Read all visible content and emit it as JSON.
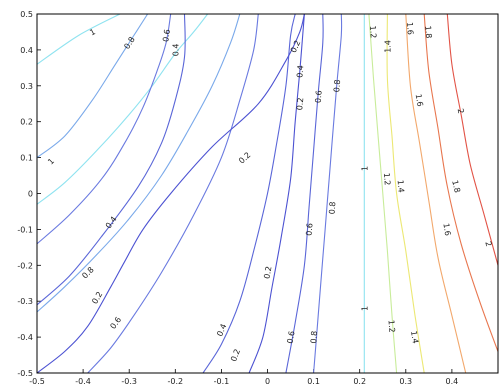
{
  "chart_data": {
    "type": "contour",
    "title": "",
    "xlabel": "",
    "ylabel": "",
    "xlim": [
      -0.5,
      0.5
    ],
    "ylim": [
      -0.5,
      0.5
    ],
    "x_ticks": [
      "-0.5",
      "-0.4",
      "-0.3",
      "-0.2",
      "-0.1",
      "0",
      "0.1",
      "0.2",
      "0.3",
      "0.4"
    ],
    "y_ticks": [
      "0.5",
      "0.4",
      "0.3",
      "0.2",
      "0.1",
      "0",
      "-0.1",
      "-0.2",
      "-0.3",
      "-0.4",
      "-0.5"
    ],
    "grid": false,
    "contours": [
      {
        "level": "1",
        "color": "#8fe3f0",
        "paths": [
          {
            "points": [
              [
                -0.5,
                0.36
              ],
              [
                -0.41,
                0.44
              ],
              [
                -0.32,
                0.5
              ]
            ],
            "labels": [
              [
                -0.38,
                0.45
              ]
            ]
          },
          {
            "points": [
              [
                -0.5,
                -0.03
              ],
              [
                -0.44,
                0.03
              ],
              [
                -0.37,
                0.12
              ],
              [
                -0.3,
                0.22
              ],
              [
                -0.25,
                0.3
              ],
              [
                -0.2,
                0.39
              ],
              [
                -0.16,
                0.45
              ],
              [
                -0.13,
                0.5
              ]
            ],
            "labels": [
              [
                -0.47,
                0.09
              ]
            ]
          }
        ]
      },
      {
        "level": "0.8",
        "color": "#7aa9ea",
        "paths": [
          {
            "points": [
              [
                -0.5,
                0.1
              ],
              [
                -0.44,
                0.16
              ],
              [
                -0.38,
                0.26
              ],
              [
                -0.33,
                0.36
              ],
              [
                -0.29,
                0.44
              ],
              [
                -0.26,
                0.5
              ]
            ],
            "labels": [
              [
                -0.3,
                0.42
              ]
            ]
          },
          {
            "points": [
              [
                -0.5,
                -0.33
              ],
              [
                -0.44,
                -0.26
              ],
              [
                -0.37,
                -0.17
              ],
              [
                -0.3,
                -0.07
              ],
              [
                -0.23,
                0.05
              ],
              [
                -0.17,
                0.18
              ],
              [
                -0.12,
                0.3
              ],
              [
                -0.08,
                0.42
              ],
              [
                -0.06,
                0.5
              ]
            ],
            "labels": [
              [
                -0.39,
                -0.22
              ]
            ]
          }
        ]
      },
      {
        "level": "0.6",
        "color": "#6a7ae0",
        "paths": [
          {
            "points": [
              [
                -0.5,
                -0.14
              ],
              [
                -0.43,
                -0.06
              ],
              [
                -0.36,
                0.04
              ],
              [
                -0.31,
                0.14
              ],
              [
                -0.27,
                0.24
              ],
              [
                -0.24,
                0.34
              ],
              [
                -0.22,
                0.42
              ],
              [
                -0.21,
                0.5
              ]
            ],
            "labels": [
              [
                -0.22,
                0.44
              ]
            ]
          },
          {
            "points": [
              [
                -0.39,
                -0.5
              ],
              [
                -0.34,
                -0.43
              ],
              [
                -0.29,
                -0.34
              ],
              [
                -0.23,
                -0.22
              ],
              [
                -0.16,
                -0.06
              ],
              [
                -0.1,
                0.1
              ],
              [
                -0.06,
                0.26
              ],
              [
                -0.03,
                0.4
              ],
              [
                -0.02,
                0.5
              ]
            ],
            "labels": [
              [
                -0.33,
                -0.36
              ]
            ]
          }
        ]
      },
      {
        "level": "0.4",
        "color": "#5a66d8",
        "paths": [
          {
            "points": [
              [
                -0.5,
                -0.31
              ],
              [
                -0.43,
                -0.23
              ],
              [
                -0.36,
                -0.12
              ],
              [
                -0.28,
                0.02
              ],
              [
                -0.23,
                0.14
              ],
              [
                -0.2,
                0.26
              ],
              [
                -0.18,
                0.38
              ],
              [
                -0.18,
                0.5
              ]
            ],
            "labels": [
              [
                -0.34,
                -0.08
              ],
              [
                -0.2,
                0.4
              ]
            ]
          },
          {
            "points": [
              [
                -0.14,
                -0.5
              ],
              [
                -0.1,
                -0.42
              ],
              [
                -0.06,
                -0.3
              ],
              [
                -0.03,
                -0.16
              ],
              [
                0.0,
                0.0
              ],
              [
                0.02,
                0.14
              ],
              [
                0.04,
                0.3
              ],
              [
                0.05,
                0.44
              ],
              [
                0.06,
                0.5
              ]
            ],
            "labels": [
              [
                -0.1,
                -0.38
              ],
              [
                0.07,
                0.34
              ]
            ]
          }
        ]
      },
      {
        "level": "0.2",
        "color": "#4c52d2",
        "paths": [
          {
            "points": [
              [
                -0.5,
                -0.5
              ],
              [
                -0.44,
                -0.44
              ],
              [
                -0.39,
                -0.37
              ],
              [
                -0.34,
                -0.26
              ],
              [
                -0.31,
                -0.19
              ],
              [
                -0.27,
                -0.1
              ],
              [
                -0.21,
                0.0
              ],
              [
                -0.12,
                0.13
              ],
              [
                -0.02,
                0.25
              ],
              [
                0.04,
                0.37
              ],
              [
                0.07,
                0.45
              ],
              [
                0.08,
                0.5
              ]
            ],
            "labels": [
              [
                -0.37,
                -0.29
              ],
              [
                -0.05,
                0.1
              ],
              [
                0.06,
                0.41
              ]
            ]
          },
          {
            "points": [
              [
                -0.04,
                -0.5
              ],
              [
                -0.01,
                -0.4
              ],
              [
                0.01,
                -0.26
              ],
              [
                0.03,
                -0.12
              ],
              [
                0.05,
                0.04
              ],
              [
                0.06,
                0.2
              ],
              [
                0.07,
                0.34
              ],
              [
                0.08,
                0.5
              ]
            ],
            "labels": [
              [
                -0.07,
                -0.45
              ],
              [
                0.0,
                -0.22
              ],
              [
                0.07,
                0.25
              ]
            ]
          }
        ]
      },
      {
        "level": "0.6",
        "color": "#5a66d8",
        "paths": [
          {
            "points": [
              [
                0.04,
                -0.5
              ],
              [
                0.06,
                -0.36
              ],
              [
                0.08,
                -0.2
              ],
              [
                0.09,
                -0.04
              ],
              [
                0.1,
                0.12
              ],
              [
                0.11,
                0.28
              ],
              [
                0.12,
                0.42
              ],
              [
                0.12,
                0.5
              ]
            ],
            "labels": [
              [
                0.05,
                -0.4
              ],
              [
                0.09,
                -0.1
              ],
              [
                0.11,
                0.27
              ]
            ]
          }
        ]
      },
      {
        "level": "0.8",
        "color": "#6a7ae0",
        "paths": [
          {
            "points": [
              [
                0.1,
                -0.5
              ],
              [
                0.11,
                -0.34
              ],
              [
                0.12,
                -0.18
              ],
              [
                0.13,
                -0.02
              ],
              [
                0.14,
                0.14
              ],
              [
                0.15,
                0.3
              ],
              [
                0.16,
                0.44
              ],
              [
                0.16,
                0.5
              ]
            ],
            "labels": [
              [
                0.1,
                -0.4
              ],
              [
                0.14,
                -0.04
              ],
              [
                0.15,
                0.3
              ]
            ]
          }
        ]
      },
      {
        "level": "1",
        "color": "#8fe3f0",
        "paths": [
          {
            "points": [
              [
                0.21,
                -0.5
              ],
              [
                0.21,
                -0.3
              ],
              [
                0.21,
                -0.1
              ],
              [
                0.21,
                0.1
              ],
              [
                0.21,
                0.3
              ],
              [
                0.21,
                0.5
              ]
            ],
            "labels": [
              [
                0.21,
                0.07
              ],
              [
                0.21,
                -0.32
              ]
            ]
          }
        ]
      },
      {
        "level": "1.2",
        "color": "#c8ec9a",
        "paths": [
          {
            "points": [
              [
                0.28,
                -0.5
              ],
              [
                0.27,
                -0.34
              ],
              [
                0.26,
                -0.16
              ],
              [
                0.25,
                0.0
              ],
              [
                0.24,
                0.16
              ],
              [
                0.23,
                0.32
              ],
              [
                0.22,
                0.5
              ]
            ],
            "labels": [
              [
                0.26,
                0.04
              ],
              [
                0.27,
                -0.37
              ],
              [
                0.23,
                0.45
              ]
            ]
          }
        ]
      },
      {
        "level": "1.4",
        "color": "#ece874",
        "paths": [
          {
            "points": [
              [
                0.34,
                -0.5
              ],
              [
                0.32,
                -0.34
              ],
              [
                0.3,
                -0.16
              ],
              [
                0.28,
                0.0
              ],
              [
                0.27,
                0.16
              ],
              [
                0.26,
                0.32
              ],
              [
                0.26,
                0.5
              ]
            ],
            "labels": [
              [
                0.29,
                0.02
              ],
              [
                0.32,
                -0.4
              ],
              [
                0.26,
                0.41
              ]
            ]
          }
        ]
      },
      {
        "level": "1.6",
        "color": "#f2a86c",
        "paths": [
          {
            "points": [
              [
                0.43,
                -0.5
              ],
              [
                0.4,
                -0.34
              ],
              [
                0.37,
                -0.18
              ],
              [
                0.35,
                -0.02
              ],
              [
                0.33,
                0.14
              ],
              [
                0.31,
                0.3
              ],
              [
                0.3,
                0.5
              ]
            ],
            "labels": [
              [
                0.39,
                -0.1
              ],
              [
                0.33,
                0.26
              ],
              [
                0.31,
                0.46
              ]
            ]
          }
        ]
      },
      {
        "level": "1.8",
        "color": "#e8764e",
        "paths": [
          {
            "points": [
              [
                0.5,
                -0.44
              ],
              [
                0.46,
                -0.3
              ],
              [
                0.42,
                -0.14
              ],
              [
                0.39,
                0.02
              ],
              [
                0.37,
                0.18
              ],
              [
                0.35,
                0.34
              ],
              [
                0.34,
                0.5
              ]
            ],
            "labels": [
              [
                0.41,
                0.02
              ],
              [
                0.35,
                0.45
              ]
            ]
          }
        ]
      },
      {
        "level": "2",
        "color": "#e25346",
        "paths": [
          {
            "points": [
              [
                0.5,
                -0.2
              ],
              [
                0.47,
                -0.06
              ],
              [
                0.44,
                0.08
              ],
              [
                0.42,
                0.22
              ],
              [
                0.4,
                0.36
              ],
              [
                0.39,
                0.5
              ]
            ],
            "labels": [
              [
                0.42,
                0.23
              ],
              [
                0.48,
                -0.14
              ]
            ]
          }
        ]
      }
    ]
  }
}
